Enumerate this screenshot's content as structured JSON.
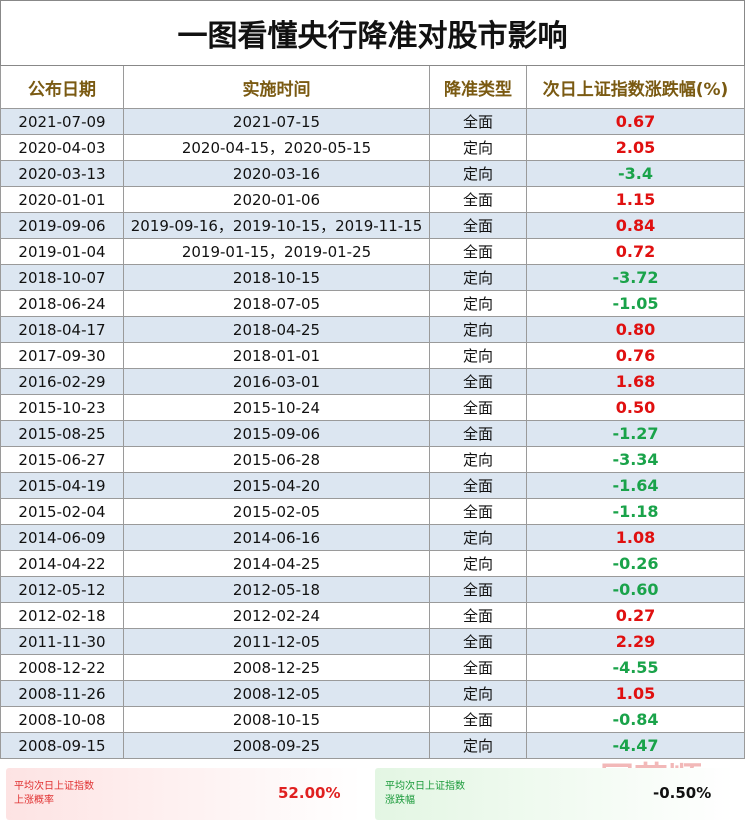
{
  "title": "一图看懂央行降准对股市影响",
  "table": {
    "header": [
      "公布日期",
      "实施时间",
      "降准类型",
      "次日上证指数涨跌幅(%)"
    ],
    "rows": [
      [
        "2021-07-09",
        "2021-07-15",
        "全面",
        "0.67"
      ],
      [
        "2020-04-03",
        "2020-04-15，2020-05-15",
        "定向",
        "2.05"
      ],
      [
        "2020-03-13",
        "2020-03-16",
        "定向",
        "-3.4"
      ],
      [
        "2020-01-01",
        "2020-01-06",
        "全面",
        "1.15"
      ],
      [
        "2019-09-06",
        "2019-09-16，2019-10-15，2019-11-15",
        "全面",
        "0.84"
      ],
      [
        "2019-01-04",
        "2019-01-15，2019-01-25",
        "全面",
        "0.72"
      ],
      [
        "2018-10-07",
        "2018-10-15",
        "定向",
        "-3.72"
      ],
      [
        "2018-06-24",
        "2018-07-05",
        "定向",
        "-1.05"
      ],
      [
        "2018-04-17",
        "2018-04-25",
        "定向",
        "0.80"
      ],
      [
        "2017-09-30",
        "2018-01-01",
        "定向",
        "0.76"
      ],
      [
        "2016-02-29",
        "2016-03-01",
        "全面",
        "1.68"
      ],
      [
        "2015-10-23",
        "2015-10-24",
        "全面",
        "0.50"
      ],
      [
        "2015-08-25",
        "2015-09-06",
        "全面",
        "-1.27"
      ],
      [
        "2015-06-27",
        "2015-06-28",
        "定向",
        "-3.34"
      ],
      [
        "2015-04-19",
        "2015-04-20",
        "全面",
        "-1.64"
      ],
      [
        "2015-02-04",
        "2015-02-05",
        "全面",
        "-1.18"
      ],
      [
        "2014-06-09",
        "2014-06-16",
        "定向",
        "1.08"
      ],
      [
        "2014-04-22",
        "2014-04-25",
        "定向",
        "-0.26"
      ],
      [
        "2012-05-12",
        "2012-05-18",
        "全面",
        "-0.60"
      ],
      [
        "2012-02-18",
        "2012-02-24",
        "全面",
        "0.27"
      ],
      [
        "2011-11-30",
        "2011-12-05",
        "全面",
        "2.29"
      ],
      [
        "2008-12-22",
        "2008-12-25",
        "全面",
        "-4.55"
      ],
      [
        "2008-11-26",
        "2008-12-05",
        "定向",
        "1.05"
      ],
      [
        "2008-10-08",
        "2008-10-15",
        "全面",
        "-0.84"
      ],
      [
        "2008-09-15",
        "2008-09-25",
        "定向",
        "-4.47"
      ]
    ]
  },
  "footer": {
    "left": {
      "label": [
        "平均次日上证指数",
        "上涨概率"
      ],
      "value": "52.00%"
    },
    "right": {
      "label": [
        "平均次日上证指数",
        "涨跌幅"
      ],
      "value": "-0.50%"
    }
  },
  "watermark": "同花顺"
}
